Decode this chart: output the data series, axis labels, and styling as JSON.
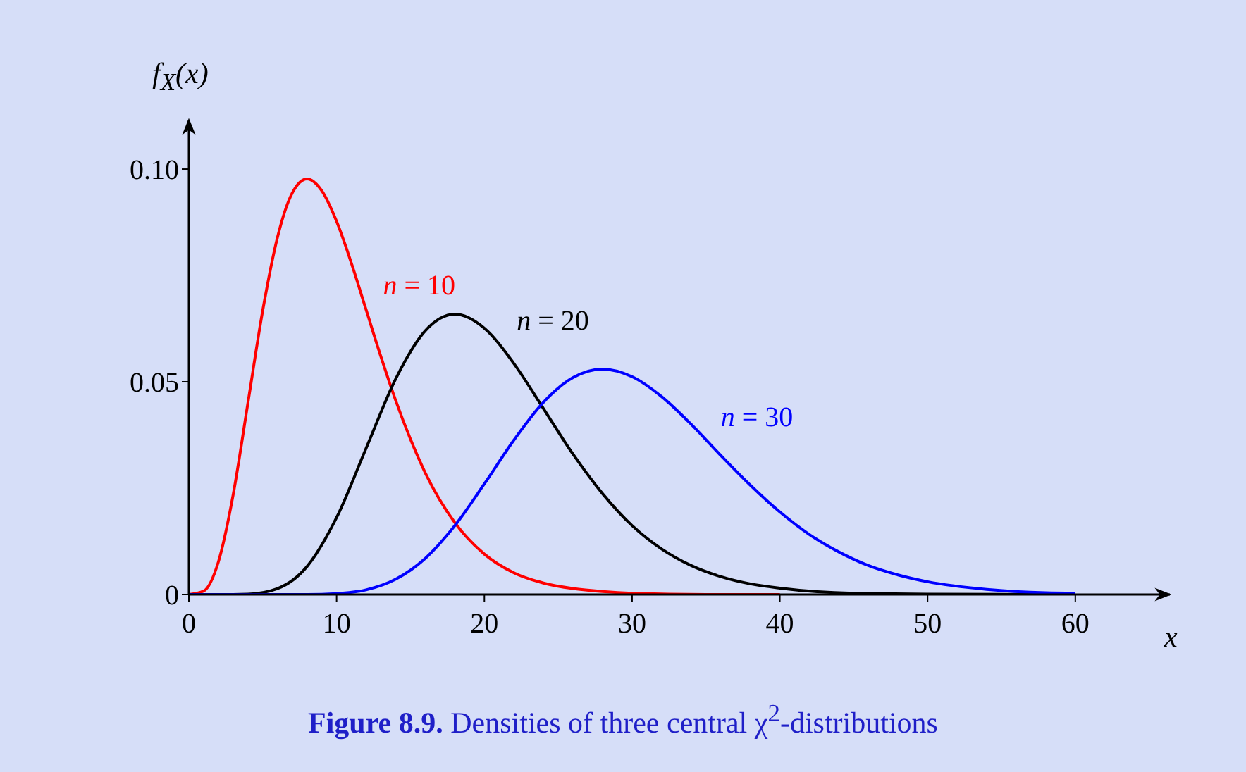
{
  "chart_data": {
    "type": "line",
    "title": "Figure 8.9. Densities of three central χ$^{2}$-distributions",
    "xlabel": "x",
    "ylabel": "f$_{X}$(x)",
    "xlim": [
      0,
      66.4
    ],
    "xticks": [
      0,
      10,
      20,
      30,
      40,
      50,
      60
    ],
    "ylim": [
      0,
      0.1116
    ],
    "yticks": [
      0,
      0.05,
      {
        "value": 0.1,
        "label": "0.10"
      }
    ],
    "marker": "none",
    "line_style": "solid",
    "series": [
      {
        "name": "n = 10",
        "color": "#ff0000",
        "x": [
          0,
          1,
          2,
          3,
          4,
          5,
          6,
          7,
          8,
          9,
          10,
          11,
          12,
          13,
          14,
          15,
          16,
          18,
          20,
          22,
          24,
          26,
          28,
          30,
          35,
          40
        ],
        "values": [
          0,
          0.0008,
          0.0077,
          0.0235,
          0.0451,
          0.0668,
          0.084,
          0.0944,
          0.0977,
          0.0949,
          0.0877,
          0.0779,
          0.0669,
          0.0559,
          0.0456,
          0.0365,
          0.0286,
          0.0169,
          0.0095,
          0.0051,
          0.0027,
          0.0014,
          0.0007,
          0.0003,
          0,
          0
        ]
      },
      {
        "name": "n = 20",
        "color": "#000000",
        "x": [
          0,
          2,
          4,
          6,
          8,
          10,
          12,
          14,
          16,
          18,
          20,
          22,
          24,
          26,
          28,
          30,
          32,
          34,
          36,
          38,
          40,
          45,
          50,
          60
        ],
        "values": [
          0,
          0,
          0.0001,
          0.0014,
          0.0066,
          0.0181,
          0.0344,
          0.0507,
          0.062,
          0.0659,
          0.0626,
          0.0543,
          0.0437,
          0.033,
          0.0237,
          0.0162,
          0.0107,
          0.0068,
          0.0042,
          0.0025,
          0.0015,
          0.0003,
          0.0001,
          0
        ]
      },
      {
        "name": "n = 30",
        "color": "#0000ff",
        "x": [
          0,
          6,
          8,
          10,
          12,
          14,
          16,
          18,
          20,
          22,
          24,
          26,
          28,
          30,
          32,
          34,
          36,
          38,
          40,
          42,
          44,
          46,
          48,
          50,
          54,
          58,
          60
        ],
        "values": [
          0,
          0,
          0,
          0.0002,
          0.0011,
          0.0036,
          0.0085,
          0.0162,
          0.026,
          0.0363,
          0.0452,
          0.051,
          0.053,
          0.0512,
          0.0465,
          0.04,
          0.0327,
          0.0257,
          0.0194,
          0.0141,
          0.01,
          0.0068,
          0.0046,
          0.003,
          0.0012,
          0.0004,
          0.0003
        ]
      }
    ]
  }
}
